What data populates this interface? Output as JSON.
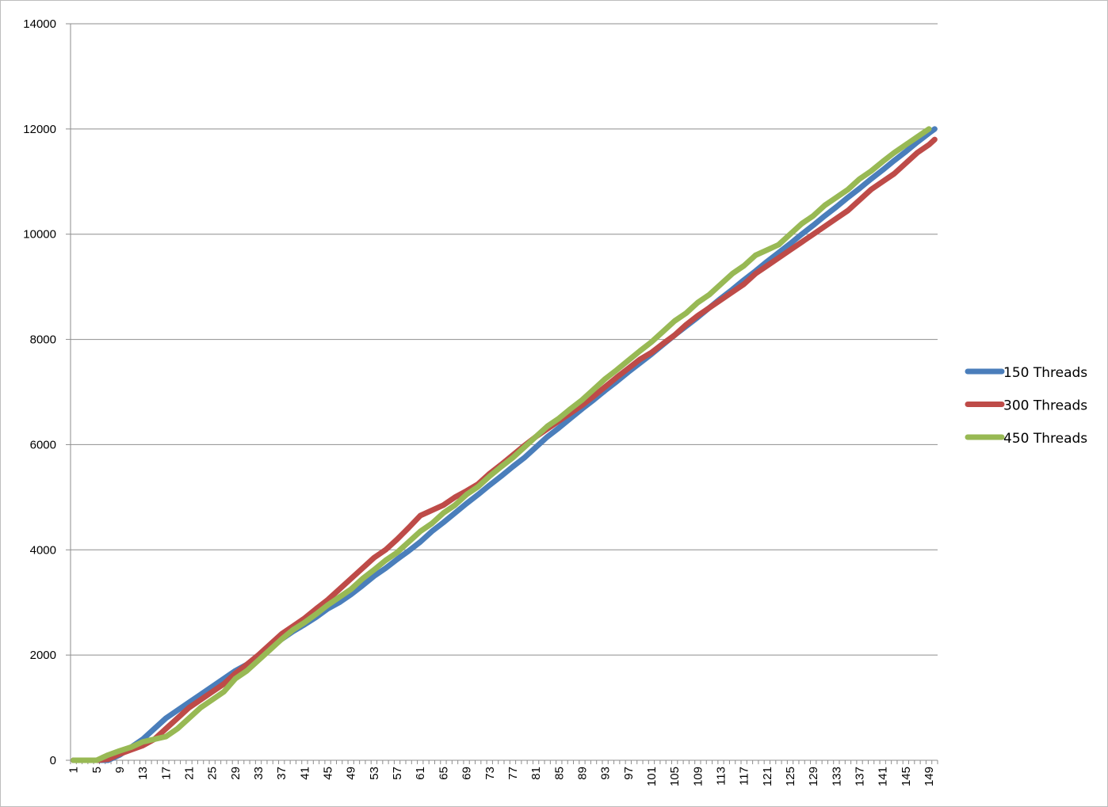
{
  "chart_data": {
    "type": "line",
    "title": "",
    "xlabel": "",
    "ylabel": "",
    "ylim": [
      0,
      14000
    ],
    "yticks": [
      0,
      2000,
      4000,
      6000,
      8000,
      10000,
      12000,
      14000
    ],
    "x_range": [
      1,
      150
    ],
    "x_tick_labels": [
      "1",
      "5",
      "9",
      "13",
      "17",
      "21",
      "25",
      "29",
      "33",
      "37",
      "41",
      "45",
      "49",
      "53",
      "57",
      "61",
      "65",
      "69",
      "73",
      "77",
      "81",
      "85",
      "89",
      "93",
      "97",
      "101",
      "105",
      "109",
      "113",
      "117",
      "121",
      "125",
      "129",
      "133",
      "137",
      "141",
      "145",
      "149"
    ],
    "grid": "horizontal",
    "legend_position": "right",
    "series": [
      {
        "name": "150 Threads",
        "color": "#4a7ebb",
        "points": [
          [
            1,
            0
          ],
          [
            5,
            0
          ],
          [
            7,
            0
          ],
          [
            9,
            100
          ],
          [
            11,
            250
          ],
          [
            13,
            400
          ],
          [
            15,
            600
          ],
          [
            17,
            800
          ],
          [
            19,
            950
          ],
          [
            21,
            1100
          ],
          [
            23,
            1250
          ],
          [
            25,
            1400
          ],
          [
            27,
            1550
          ],
          [
            29,
            1700
          ],
          [
            31,
            1820
          ],
          [
            33,
            1980
          ],
          [
            35,
            2150
          ],
          [
            37,
            2300
          ],
          [
            39,
            2450
          ],
          [
            41,
            2580
          ],
          [
            43,
            2720
          ],
          [
            45,
            2880
          ],
          [
            47,
            3000
          ],
          [
            49,
            3150
          ],
          [
            51,
            3320
          ],
          [
            53,
            3500
          ],
          [
            55,
            3650
          ],
          [
            57,
            3820
          ],
          [
            59,
            3980
          ],
          [
            61,
            4150
          ],
          [
            63,
            4350
          ],
          [
            65,
            4520
          ],
          [
            67,
            4700
          ],
          [
            69,
            4880
          ],
          [
            71,
            5050
          ],
          [
            73,
            5230
          ],
          [
            75,
            5400
          ],
          [
            77,
            5580
          ],
          [
            79,
            5750
          ],
          [
            81,
            5950
          ],
          [
            83,
            6150
          ],
          [
            85,
            6320
          ],
          [
            87,
            6500
          ],
          [
            89,
            6680
          ],
          [
            91,
            6850
          ],
          [
            93,
            7030
          ],
          [
            95,
            7200
          ],
          [
            97,
            7380
          ],
          [
            99,
            7550
          ],
          [
            101,
            7720
          ],
          [
            103,
            7900
          ],
          [
            105,
            8080
          ],
          [
            107,
            8250
          ],
          [
            109,
            8420
          ],
          [
            111,
            8600
          ],
          [
            113,
            8780
          ],
          [
            115,
            8950
          ],
          [
            117,
            9130
          ],
          [
            119,
            9300
          ],
          [
            121,
            9480
          ],
          [
            123,
            9650
          ],
          [
            125,
            9820
          ],
          [
            127,
            10000
          ],
          [
            129,
            10170
          ],
          [
            131,
            10350
          ],
          [
            133,
            10520
          ],
          [
            135,
            10700
          ],
          [
            137,
            10870
          ],
          [
            139,
            11050
          ],
          [
            141,
            11220
          ],
          [
            143,
            11400
          ],
          [
            145,
            11570
          ],
          [
            147,
            11750
          ],
          [
            149,
            11920
          ],
          [
            150,
            12000
          ]
        ]
      },
      {
        "name": "300 Threads",
        "color": "#be4b48",
        "points": [
          [
            1,
            0
          ],
          [
            5,
            0
          ],
          [
            7,
            20
          ],
          [
            9,
            120
          ],
          [
            11,
            200
          ],
          [
            13,
            280
          ],
          [
            15,
            400
          ],
          [
            17,
            600
          ],
          [
            19,
            800
          ],
          [
            21,
            1000
          ],
          [
            23,
            1150
          ],
          [
            25,
            1300
          ],
          [
            27,
            1450
          ],
          [
            29,
            1650
          ],
          [
            31,
            1820
          ],
          [
            33,
            2000
          ],
          [
            35,
            2200
          ],
          [
            37,
            2400
          ],
          [
            39,
            2550
          ],
          [
            41,
            2700
          ],
          [
            43,
            2880
          ],
          [
            45,
            3050
          ],
          [
            47,
            3250
          ],
          [
            49,
            3450
          ],
          [
            51,
            3650
          ],
          [
            53,
            3850
          ],
          [
            55,
            4000
          ],
          [
            57,
            4200
          ],
          [
            59,
            4420
          ],
          [
            61,
            4650
          ],
          [
            63,
            4750
          ],
          [
            65,
            4850
          ],
          [
            67,
            5000
          ],
          [
            69,
            5120
          ],
          [
            71,
            5250
          ],
          [
            73,
            5450
          ],
          [
            75,
            5620
          ],
          [
            77,
            5800
          ],
          [
            79,
            5980
          ],
          [
            81,
            6150
          ],
          [
            83,
            6300
          ],
          [
            85,
            6450
          ],
          [
            87,
            6600
          ],
          [
            89,
            6750
          ],
          [
            91,
            6920
          ],
          [
            93,
            7100
          ],
          [
            95,
            7280
          ],
          [
            97,
            7450
          ],
          [
            99,
            7620
          ],
          [
            101,
            7750
          ],
          [
            103,
            7920
          ],
          [
            105,
            8080
          ],
          [
            107,
            8280
          ],
          [
            109,
            8450
          ],
          [
            111,
            8600
          ],
          [
            113,
            8750
          ],
          [
            115,
            8900
          ],
          [
            117,
            9050
          ],
          [
            119,
            9250
          ],
          [
            121,
            9400
          ],
          [
            123,
            9550
          ],
          [
            125,
            9700
          ],
          [
            127,
            9850
          ],
          [
            129,
            10000
          ],
          [
            131,
            10150
          ],
          [
            133,
            10300
          ],
          [
            135,
            10450
          ],
          [
            137,
            10650
          ],
          [
            139,
            10850
          ],
          [
            141,
            11000
          ],
          [
            143,
            11150
          ],
          [
            145,
            11350
          ],
          [
            147,
            11550
          ],
          [
            149,
            11700
          ],
          [
            150,
            11800
          ]
        ]
      },
      {
        "name": "450 Threads",
        "color": "#98b954",
        "points": [
          [
            1,
            0
          ],
          [
            5,
            0
          ],
          [
            7,
            100
          ],
          [
            9,
            180
          ],
          [
            11,
            250
          ],
          [
            13,
            350
          ],
          [
            15,
            400
          ],
          [
            17,
            450
          ],
          [
            19,
            600
          ],
          [
            21,
            800
          ],
          [
            23,
            1000
          ],
          [
            25,
            1150
          ],
          [
            27,
            1300
          ],
          [
            29,
            1550
          ],
          [
            31,
            1700
          ],
          [
            33,
            1900
          ],
          [
            35,
            2100
          ],
          [
            37,
            2300
          ],
          [
            39,
            2480
          ],
          [
            41,
            2620
          ],
          [
            43,
            2780
          ],
          [
            45,
            2950
          ],
          [
            47,
            3100
          ],
          [
            49,
            3250
          ],
          [
            51,
            3450
          ],
          [
            53,
            3620
          ],
          [
            55,
            3800
          ],
          [
            57,
            3950
          ],
          [
            59,
            4150
          ],
          [
            61,
            4350
          ],
          [
            63,
            4500
          ],
          [
            65,
            4700
          ],
          [
            67,
            4850
          ],
          [
            69,
            5050
          ],
          [
            71,
            5200
          ],
          [
            73,
            5400
          ],
          [
            75,
            5580
          ],
          [
            77,
            5750
          ],
          [
            79,
            5950
          ],
          [
            81,
            6150
          ],
          [
            83,
            6350
          ],
          [
            85,
            6500
          ],
          [
            87,
            6680
          ],
          [
            89,
            6850
          ],
          [
            91,
            7050
          ],
          [
            93,
            7250
          ],
          [
            95,
            7420
          ],
          [
            97,
            7600
          ],
          [
            99,
            7780
          ],
          [
            101,
            7950
          ],
          [
            103,
            8150
          ],
          [
            105,
            8350
          ],
          [
            107,
            8500
          ],
          [
            109,
            8700
          ],
          [
            111,
            8850
          ],
          [
            113,
            9050
          ],
          [
            115,
            9250
          ],
          [
            117,
            9400
          ],
          [
            119,
            9600
          ],
          [
            121,
            9700
          ],
          [
            123,
            9800
          ],
          [
            125,
            10000
          ],
          [
            127,
            10200
          ],
          [
            129,
            10350
          ],
          [
            131,
            10550
          ],
          [
            133,
            10700
          ],
          [
            135,
            10850
          ],
          [
            137,
            11050
          ],
          [
            139,
            11200
          ],
          [
            141,
            11380
          ],
          [
            143,
            11550
          ],
          [
            145,
            11700
          ],
          [
            147,
            11850
          ],
          [
            149,
            12000
          ]
        ]
      }
    ]
  }
}
